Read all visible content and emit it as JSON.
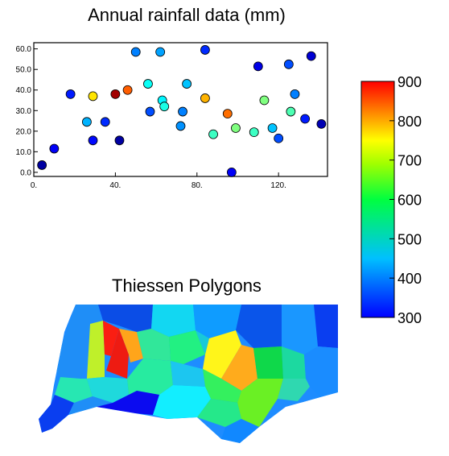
{
  "scatter": {
    "title": "Annual rainfall data (mm)",
    "xlim": [
      0,
      144
    ],
    "ylim": [
      -2,
      63
    ],
    "xticks": [
      "0.",
      "40.",
      "80.",
      "120."
    ],
    "xtick_values": [
      0,
      40,
      80,
      120
    ],
    "yticks": [
      "0.0",
      "10.0",
      "20.0",
      "30.0",
      "40.0",
      "50.0",
      "60.0"
    ],
    "ytick_values": [
      0,
      10,
      20,
      30,
      40,
      50,
      60
    ]
  },
  "colorbar": {
    "ticks": [
      "900",
      "800",
      "700",
      "600",
      "500",
      "400",
      "300"
    ],
    "tick_values": [
      900,
      800,
      700,
      600,
      500,
      400,
      300
    ],
    "range": [
      300,
      900
    ]
  },
  "polygons": {
    "title": "Thiessen Polygons"
  },
  "chart_data": {
    "type": "scatter",
    "title": "Annual rainfall data (mm)",
    "xlabel": "",
    "ylabel": "",
    "xlim": [
      0,
      144
    ],
    "ylim": [
      -2,
      63
    ],
    "colorscale": "jet",
    "color_range": [
      300,
      900
    ],
    "grid": false,
    "points": [
      {
        "x": 4,
        "y": 3.5,
        "value": 320
      },
      {
        "x": 10,
        "y": 11.5,
        "value": 370
      },
      {
        "x": 18,
        "y": 38,
        "value": 390
      },
      {
        "x": 26,
        "y": 24.5,
        "value": 480
      },
      {
        "x": 29,
        "y": 37,
        "value": 690
      },
      {
        "x": 29,
        "y": 15.5,
        "value": 380
      },
      {
        "x": 35,
        "y": 24.5,
        "value": 400
      },
      {
        "x": 40,
        "y": 38,
        "value": 880
      },
      {
        "x": 42,
        "y": 15.5,
        "value": 320
      },
      {
        "x": 46,
        "y": 40,
        "value": 770
      },
      {
        "x": 50,
        "y": 58.5,
        "value": 450
      },
      {
        "x": 56,
        "y": 43,
        "value": 530
      },
      {
        "x": 57,
        "y": 29.5,
        "value": 420
      },
      {
        "x": 62,
        "y": 58.5,
        "value": 470
      },
      {
        "x": 63,
        "y": 35,
        "value": 520
      },
      {
        "x": 64,
        "y": 32,
        "value": 540
      },
      {
        "x": 72,
        "y": 22.5,
        "value": 460
      },
      {
        "x": 73,
        "y": 29.5,
        "value": 450
      },
      {
        "x": 75,
        "y": 43,
        "value": 490
      },
      {
        "x": 84,
        "y": 59.5,
        "value": 400
      },
      {
        "x": 84,
        "y": 36,
        "value": 720
      },
      {
        "x": 88,
        "y": 18.5,
        "value": 560
      },
      {
        "x": 95,
        "y": 28.5,
        "value": 760
      },
      {
        "x": 97,
        "y": 0,
        "value": 370
      },
      {
        "x": 99,
        "y": 21.5,
        "value": 600
      },
      {
        "x": 108,
        "y": 19.5,
        "value": 560
      },
      {
        "x": 110,
        "y": 51.5,
        "value": 360
      },
      {
        "x": 113,
        "y": 35,
        "value": 600
      },
      {
        "x": 117,
        "y": 21.5,
        "value": 490
      },
      {
        "x": 120,
        "y": 16.5,
        "value": 420
      },
      {
        "x": 125,
        "y": 52.5,
        "value": 420
      },
      {
        "x": 126,
        "y": 29.5,
        "value": 570
      },
      {
        "x": 128,
        "y": 38,
        "value": 450
      },
      {
        "x": 133,
        "y": 26,
        "value": 390
      },
      {
        "x": 136,
        "y": 56.5,
        "value": 350
      },
      {
        "x": 141,
        "y": 23.5,
        "value": 330
      }
    ]
  }
}
